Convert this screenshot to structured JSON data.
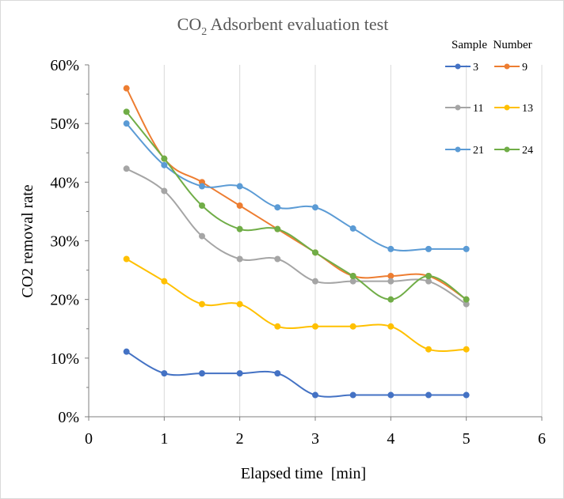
{
  "chart_data": {
    "type": "line",
    "title_main": "CO",
    "title_sub": "2",
    "title_rest": " Adsorbent evaluation test",
    "xlabel": "Elapsed time  [min]",
    "ylabel": "CO2 removal rate",
    "legend_title": "Sample  Number",
    "legend_position": "top-right",
    "xlim": [
      0,
      6
    ],
    "ylim": [
      0,
      60
    ],
    "x_ticks": [
      0,
      1,
      2,
      3,
      4,
      5,
      6
    ],
    "y_ticks": [
      0,
      10,
      20,
      30,
      40,
      50,
      60
    ],
    "x_tick_labels": [
      "0",
      "1",
      "2",
      "3",
      "4",
      "5",
      "6"
    ],
    "y_tick_labels": [
      "0%",
      "10%",
      "20%",
      "30%",
      "40%",
      "50%",
      "60%"
    ],
    "grid_vertical": true,
    "grid_horizontal": false,
    "smooth": true,
    "series": [
      {
        "name": "3",
        "color": "#4472c4",
        "x": [
          0.5,
          1,
          1.5,
          2,
          2.5,
          3,
          3.5,
          4,
          4.5,
          5
        ],
        "y": [
          11.1,
          7.4,
          7.4,
          7.4,
          7.4,
          3.7,
          3.7,
          3.7,
          3.7,
          3.7
        ]
      },
      {
        "name": "9",
        "color": "#ed7d31",
        "x": [
          0.5,
          1,
          1.5,
          2,
          2.5,
          3,
          3.5,
          4,
          4.5,
          5
        ],
        "y": [
          56.0,
          44.0,
          40.0,
          36.0,
          32.0,
          28.0,
          24.0,
          24.0,
          24.0,
          20.0
        ]
      },
      {
        "name": "11",
        "color": "#a5a5a5",
        "x": [
          0.5,
          1,
          1.5,
          2,
          2.5,
          3,
          3.5,
          4,
          4.5,
          5
        ],
        "y": [
          42.3,
          38.5,
          30.8,
          26.9,
          26.9,
          23.1,
          23.1,
          23.1,
          23.1,
          19.2
        ]
      },
      {
        "name": "13",
        "color": "#ffc000",
        "x": [
          0.5,
          1,
          1.5,
          2,
          2.5,
          3,
          3.5,
          4,
          4.5,
          5
        ],
        "y": [
          26.9,
          23.1,
          19.2,
          19.2,
          15.4,
          15.4,
          15.4,
          15.4,
          11.5,
          11.5
        ]
      },
      {
        "name": "21",
        "color": "#5b9bd5",
        "x": [
          0.5,
          1,
          1.5,
          2,
          2.5,
          3,
          3.5,
          4,
          4.5,
          5
        ],
        "y": [
          50.0,
          42.9,
          39.3,
          39.3,
          35.7,
          35.7,
          32.1,
          28.6,
          28.6,
          28.6
        ]
      },
      {
        "name": "24",
        "color": "#70ad47",
        "x": [
          0.5,
          1,
          1.5,
          2,
          2.5,
          3,
          3.5,
          4,
          4.5,
          5
        ],
        "y": [
          52.0,
          44.0,
          36.0,
          32.0,
          32.0,
          28.0,
          24.0,
          20.0,
          24.0,
          20.0
        ]
      }
    ]
  }
}
